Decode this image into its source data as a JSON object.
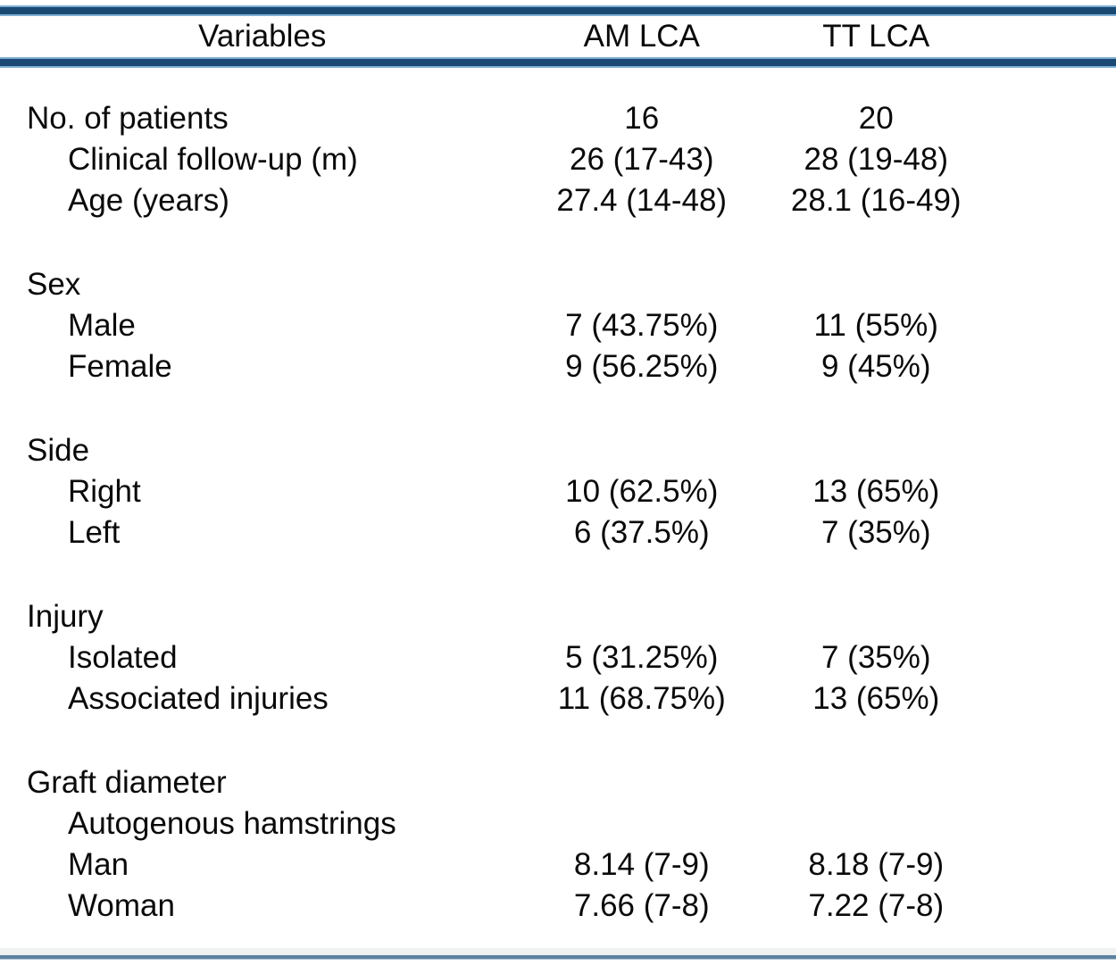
{
  "table": {
    "columns": [
      "Variables",
      "AM LCA",
      "TT LCA"
    ],
    "sections": [
      {
        "label": "No. of patients",
        "am": "16",
        "tt": "20",
        "rows": [
          {
            "label": "Clinical follow-up (m)",
            "am": "26 (17-43)",
            "tt": "28 (19-48)"
          },
          {
            "label": "Age (years)",
            "am": "27.4 (14-48)",
            "tt": "28.1 (16-49)"
          }
        ]
      },
      {
        "label": "Sex",
        "am": "",
        "tt": "",
        "rows": [
          {
            "label": "Male",
            "am": "7 (43.75%)",
            "tt": "11 (55%)"
          },
          {
            "label": "Female",
            "am": "9 (56.25%)",
            "tt": "9 (45%)"
          }
        ]
      },
      {
        "label": "Side",
        "am": "",
        "tt": "",
        "rows": [
          {
            "label": "Right",
            "am": "10 (62.5%)",
            "tt": "13 (65%)"
          },
          {
            "label": "Left",
            "am": "6 (37.5%)",
            "tt": "7 (35%)"
          }
        ]
      },
      {
        "label": "Injury",
        "am": "",
        "tt": "",
        "rows": [
          {
            "label": "Isolated",
            "am": "5 (31.25%)",
            "tt": "7 (35%)"
          },
          {
            "label": "Associated injuries",
            "am": "11 (68.75%)",
            "tt": "13 (65%)"
          }
        ]
      },
      {
        "label": "Graft diameter",
        "am": "",
        "tt": "",
        "rows": [
          {
            "label": "Autogenous hamstrings",
            "am": "",
            "tt": ""
          },
          {
            "label": "Man",
            "am": "8.14 (7-9)",
            "tt": "8.18 (7-9)"
          },
          {
            "label": "Woman",
            "am": "7.66 (7-8)",
            "tt": "7.22 (7-8)"
          }
        ]
      }
    ]
  },
  "colors": {
    "text": "#0a0a0a",
    "background": "#ffffff",
    "rule_dark_blue": "#1a4a73",
    "rule_light_blue_edge": "#7fafd3",
    "rule_bottom_steel_blue": "#5d82a0"
  }
}
